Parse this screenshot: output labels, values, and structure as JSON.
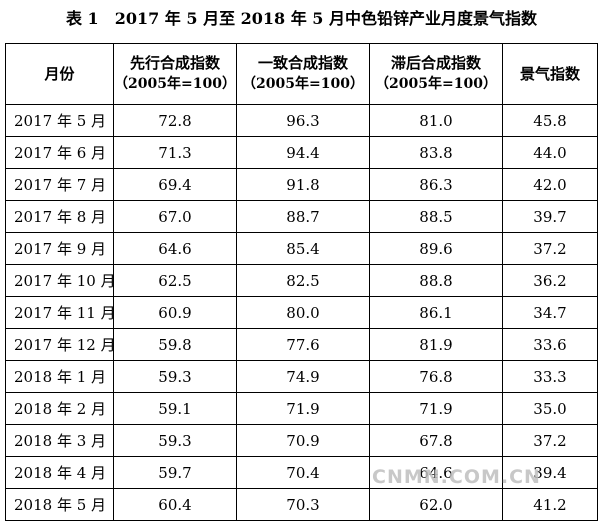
{
  "document": {
    "title": "表 1　2017 年 5 月至 2018 年 5 月中色铅锌产业月度景气指数"
  },
  "table": {
    "headers": {
      "month": "月份",
      "leading": "先行合成指数",
      "leading_base": "（2005年=100）",
      "coincident": "一致合成指数",
      "coincident_base": "（2005年=100）",
      "lagging": "滞后合成指数",
      "lagging_base": "（2005年=100）",
      "prosperity": "景气指数"
    },
    "rows": [
      {
        "month": "2017 年 5 月",
        "leading": "72.8",
        "coincident": "96.3",
        "lagging": "81.0",
        "prosperity": "45.8"
      },
      {
        "month": "2017 年 6 月",
        "leading": "71.3",
        "coincident": "94.4",
        "lagging": "83.8",
        "prosperity": "44.0"
      },
      {
        "month": "2017 年 7 月",
        "leading": "69.4",
        "coincident": "91.8",
        "lagging": "86.3",
        "prosperity": "42.0"
      },
      {
        "month": "2017 年 8 月",
        "leading": "67.0",
        "coincident": "88.7",
        "lagging": "88.5",
        "prosperity": "39.7"
      },
      {
        "month": "2017 年 9 月",
        "leading": "64.6",
        "coincident": "85.4",
        "lagging": "89.6",
        "prosperity": "37.2"
      },
      {
        "month": "2017 年 10 月",
        "leading": "62.5",
        "coincident": "82.5",
        "lagging": "88.8",
        "prosperity": "36.2"
      },
      {
        "month": "2017 年 11 月",
        "leading": "60.9",
        "coincident": "80.0",
        "lagging": "86.1",
        "prosperity": "34.7"
      },
      {
        "month": "2017 年 12 月",
        "leading": "59.8",
        "coincident": "77.6",
        "lagging": "81.9",
        "prosperity": "33.6"
      },
      {
        "month": "2018 年 1 月",
        "leading": "59.3",
        "coincident": "74.9",
        "lagging": "76.8",
        "prosperity": "33.3"
      },
      {
        "month": "2018 年 2 月",
        "leading": "59.1",
        "coincident": "71.9",
        "lagging": "71.9",
        "prosperity": "35.0"
      },
      {
        "month": "2018 年 3 月",
        "leading": "59.3",
        "coincident": "70.9",
        "lagging": "67.8",
        "prosperity": "37.2"
      },
      {
        "month": "2018 年 4 月",
        "leading": "59.7",
        "coincident": "70.4",
        "lagging": "64.6",
        "prosperity": "39.4"
      },
      {
        "month": "2018 年 5 月",
        "leading": "60.4",
        "coincident": "70.3",
        "lagging": "62.0",
        "prosperity": "41.2"
      }
    ]
  },
  "watermark": {
    "text": "CNMN.COM.CN"
  }
}
